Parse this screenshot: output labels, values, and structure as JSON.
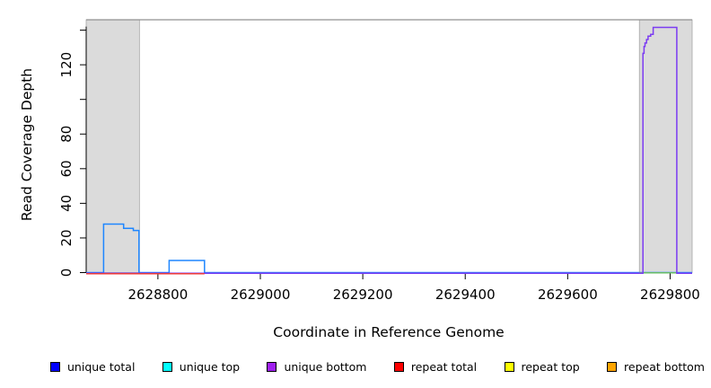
{
  "figure": {
    "y_axis_title": "Read Coverage Depth",
    "x_axis_title": "Coordinate in Reference Genome"
  },
  "legend": {
    "items": [
      {
        "label": "unique total",
        "color": "#0000FF"
      },
      {
        "label": "unique top",
        "color": "#00FFFF"
      },
      {
        "label": "unique bottom",
        "color": "#A020F0"
      },
      {
        "label": "repeat total",
        "color": "#FF0000"
      },
      {
        "label": "repeat top",
        "color": "#FFFF00"
      },
      {
        "label": "repeat bottom",
        "color": "#FFA500"
      }
    ]
  },
  "chart_data": {
    "type": "line",
    "title": "",
    "xlabel": "Coordinate in Reference Genome",
    "ylabel": "Read Coverage Depth",
    "xlim": [
      2628660,
      2629843
    ],
    "ylim": [
      0,
      146
    ],
    "grid": false,
    "legend_position": "bottom",
    "x_ticks": [
      {
        "value": 2628800,
        "label": "2628800"
      },
      {
        "value": 2629000,
        "label": "2629000"
      },
      {
        "value": 2629200,
        "label": "2629200"
      },
      {
        "value": 2629400,
        "label": "2629400"
      },
      {
        "value": 2629600,
        "label": "2629600"
      },
      {
        "value": 2629800,
        "label": "2629800"
      }
    ],
    "y_ticks": [
      {
        "value": 0,
        "label": "0"
      },
      {
        "value": 20,
        "label": "20"
      },
      {
        "value": 40,
        "label": "40"
      },
      {
        "value": 60,
        "label": "60"
      },
      {
        "value": 80,
        "label": "80"
      },
      {
        "value": 100,
        "label": ""
      },
      {
        "value": 120,
        "label": "120"
      },
      {
        "value": 140,
        "label": ""
      }
    ],
    "shaded_regions": [
      {
        "name": "left-gray-region",
        "from": 2628660,
        "to": 2628764,
        "fill": "#DBDBDB",
        "stroke": "#A8A8A8"
      },
      {
        "name": "right-gray-region",
        "from": 2629740,
        "to": 2629843,
        "fill": "#DBDBDB",
        "stroke": "#A8A8A8"
      }
    ],
    "series": [
      {
        "name": "unique total",
        "color": "#1E86FF",
        "points": [
          [
            2628660,
            0
          ],
          [
            2628694,
            0
          ],
          [
            2628694,
            28
          ],
          [
            2628733,
            28
          ],
          [
            2628733,
            25.5
          ],
          [
            2628752,
            25.5
          ],
          [
            2628752,
            24.3
          ],
          [
            2628763,
            24.3
          ],
          [
            2628763,
            0
          ],
          [
            2628822,
            0
          ],
          [
            2628822,
            7
          ],
          [
            2628891,
            7
          ],
          [
            2628891,
            0
          ],
          [
            2629843,
            0
          ]
        ]
      },
      {
        "name": "zero-line green segment",
        "color": "#66BB66",
        "points": [
          [
            2629740,
            0
          ],
          [
            2629813,
            0
          ]
        ]
      },
      {
        "name": "unique bottom",
        "color": "#7B3BF2",
        "points": [
          [
            2628660,
            0
          ],
          [
            2629747,
            0
          ],
          [
            2629747,
            127
          ],
          [
            2629749,
            127
          ],
          [
            2629749,
            131
          ],
          [
            2629751,
            131
          ],
          [
            2629751,
            133
          ],
          [
            2629754,
            133
          ],
          [
            2629754,
            135
          ],
          [
            2629757,
            135
          ],
          [
            2629757,
            137
          ],
          [
            2629762,
            137
          ],
          [
            2629762,
            138
          ],
          [
            2629767,
            138
          ],
          [
            2629767,
            142
          ],
          [
            2629813,
            142
          ],
          [
            2629813,
            0
          ],
          [
            2629843,
            0
          ]
        ]
      },
      {
        "name": "repeat total",
        "color": "#EE3B3B",
        "points": [
          [
            2628660,
            0
          ],
          [
            2628891,
            0
          ]
        ]
      }
    ],
    "frame": {
      "top_border_color": "#909090",
      "axis_color": "#000000"
    }
  }
}
